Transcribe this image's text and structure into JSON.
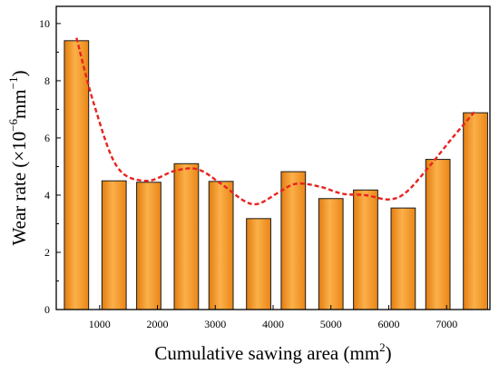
{
  "chart_data": {
    "type": "bar",
    "xlabel": "Cumulative sawing area (mm",
    "xlabel_sup": "2",
    "xlabel_end": ")",
    "ylabel": "Wear rate (×10",
    "ylabel_sup": "−6",
    "ylabel_mid": "mm",
    "ylabel_sup2": "−1",
    "ylabel_end": ")",
    "xlim": [
      250,
      7750
    ],
    "ylim": [
      0,
      10.6
    ],
    "x_ticks": [
      1000,
      2000,
      3000,
      4000,
      5000,
      6000,
      7000
    ],
    "x_tick_labels": [
      "1000",
      "2000",
      "3000",
      "4000",
      "5000",
      "6000",
      "7000"
    ],
    "y_ticks": [
      0,
      2,
      4,
      6,
      8,
      10
    ],
    "y_tick_labels": [
      "0",
      "2",
      "4",
      "6",
      "8",
      "10"
    ],
    "bar_width": 420,
    "bars": {
      "x": [
        600,
        1250,
        1850,
        2500,
        3100,
        3750,
        4350,
        5000,
        5600,
        6250,
        6850,
        7500
      ],
      "values": [
        9.4,
        4.5,
        4.45,
        5.1,
        4.48,
        3.18,
        4.82,
        3.88,
        4.18,
        3.55,
        5.25,
        6.88
      ]
    },
    "trend_line": {
      "style": "dashed",
      "x": [
        600,
        900,
        1300,
        1800,
        2300,
        2700,
        3100,
        3500,
        3750,
        4100,
        4400,
        4800,
        5200,
        5600,
        6000,
        6300,
        6700,
        7100,
        7500
      ],
      "y": [
        9.5,
        7.2,
        5.0,
        4.5,
        4.85,
        4.9,
        4.4,
        3.8,
        3.7,
        4.1,
        4.4,
        4.3,
        4.05,
        4.0,
        3.85,
        4.1,
        5.0,
        6.0,
        6.95
      ]
    },
    "colors": {
      "bar_fill": "#f7941d",
      "bar_edge": "#1a1a1a",
      "trend": "#e8231f",
      "axis": "#000000"
    },
    "grid": false
  }
}
